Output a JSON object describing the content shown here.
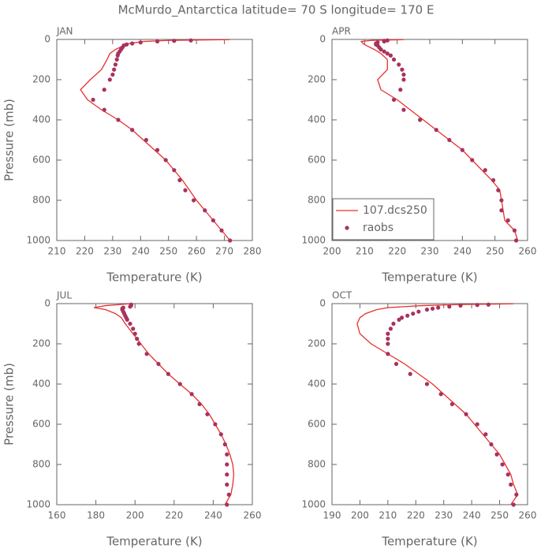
{
  "title": "McMurdo_Antarctica  latitude= 70 S longitude= 170 E",
  "chart_data": [
    {
      "type": "line",
      "title": "JAN",
      "xlabel": "Temperature (K)",
      "ylabel": "Pressure (mb)",
      "xlim": [
        210,
        280
      ],
      "xticks": [
        210,
        220,
        230,
        240,
        250,
        260,
        270,
        280
      ],
      "ylim": [
        0,
        1000
      ],
      "yticks": [
        0,
        200,
        400,
        600,
        800,
        1000
      ],
      "y_inverted": true,
      "series": [
        {
          "color": "#e8302b",
          "style": "line",
          "x": [
            272,
            250,
            241,
            236,
            234,
            231,
            229,
            228,
            226,
            222,
            218.5,
            221,
            226,
            232,
            237,
            241,
            245,
            249,
            252,
            255,
            257.5,
            260,
            263,
            266,
            269,
            272
          ],
          "values": [
            1,
            5,
            10,
            20,
            30,
            50,
            70,
            100,
            150,
            200,
            250,
            300,
            350,
            400,
            450,
            500,
            550,
            600,
            650,
            700,
            750,
            800,
            850,
            900,
            950,
            1000
          ]
        },
        {
          "color": "#a8325f",
          "style": "scatter",
          "x": [
            258,
            252,
            246,
            240,
            237,
            235,
            234,
            233.5,
            233,
            232.5,
            232,
            231.8,
            231.5,
            231,
            230.5,
            230,
            229,
            227,
            223,
            227,
            232,
            237,
            242,
            246,
            249,
            252,
            254,
            256,
            259,
            263,
            266,
            269,
            272
          ],
          "values": [
            5,
            7,
            10,
            15,
            20,
            25,
            30,
            40,
            50,
            60,
            70,
            80,
            100,
            125,
            150,
            175,
            200,
            250,
            300,
            350,
            400,
            450,
            500,
            550,
            600,
            650,
            700,
            750,
            800,
            850,
            900,
            950,
            1000
          ]
        }
      ]
    },
    {
      "type": "line",
      "title": "APR",
      "xlabel": "Temperature (K)",
      "xlim": [
        200,
        260
      ],
      "xticks": [
        200,
        210,
        220,
        230,
        240,
        250,
        260
      ],
      "ylim": [
        0,
        1000
      ],
      "yticks": [
        0,
        200,
        400,
        600,
        800,
        1000
      ],
      "y_inverted": true,
      "legend": "lower left",
      "series": [
        {
          "name": "107.dcs250",
          "color": "#e8302b",
          "style": "line",
          "x": [
            222,
            212,
            209,
            209.5,
            210.5,
            213,
            215,
            217,
            217,
            214,
            215,
            220,
            224,
            228,
            232,
            236,
            240,
            243,
            246,
            249,
            251.5,
            252,
            252.5,
            253,
            256,
            257
          ],
          "values": [
            1,
            5,
            10,
            20,
            30,
            50,
            70,
            100,
            150,
            200,
            250,
            300,
            350,
            400,
            450,
            500,
            550,
            600,
            650,
            700,
            750,
            800,
            850,
            900,
            950,
            1000
          ]
        },
        {
          "name": "raobs",
          "color": "#a8325f",
          "style": "scatter",
          "x": [
            217,
            216,
            216,
            214,
            213.5,
            213.5,
            214,
            214.5,
            215,
            216,
            217,
            218,
            219,
            220.5,
            221.5,
            222,
            222,
            221,
            219,
            222,
            227,
            232,
            236,
            240,
            243,
            247,
            249.5,
            251,
            252,
            252,
            254,
            256,
            256.5
          ],
          "values": [
            5,
            7,
            10,
            15,
            20,
            25,
            30,
            40,
            50,
            60,
            70,
            80,
            100,
            125,
            150,
            175,
            200,
            250,
            300,
            350,
            400,
            450,
            500,
            550,
            600,
            650,
            700,
            750,
            800,
            850,
            900,
            950,
            1000
          ]
        }
      ]
    },
    {
      "type": "line",
      "title": "JUL",
      "xlabel": "Temperature (K)",
      "ylabel": "Pressure (mb)",
      "xlim": [
        160,
        260
      ],
      "xticks": [
        160,
        180,
        200,
        220,
        240,
        260
      ],
      "ylim": [
        0,
        1000
      ],
      "yticks": [
        0,
        200,
        400,
        600,
        800,
        1000
      ],
      "y_inverted": true,
      "series": [
        {
          "color": "#e8302b",
          "style": "line",
          "x": [
            197,
            192,
            185,
            179,
            185,
            190,
            193,
            195,
            199,
            203,
            207,
            212,
            217,
            223,
            229,
            234,
            238,
            241,
            244,
            246.5,
            248.5,
            250,
            250.5,
            250,
            249,
            246
          ],
          "values": [
            1,
            5,
            10,
            20,
            30,
            50,
            70,
            100,
            150,
            200,
            250,
            300,
            350,
            400,
            450,
            500,
            550,
            600,
            650,
            700,
            750,
            800,
            850,
            900,
            950,
            1000
          ]
        },
        {
          "color": "#a8325f",
          "style": "scatter",
          "x": [
            198,
            198,
            198,
            197.5,
            194,
            193.5,
            193.5,
            194,
            194.5,
            195,
            195.5,
            196,
            197.5,
            199,
            200,
            201,
            202,
            206,
            212,
            217,
            223,
            229,
            233,
            237,
            241,
            244,
            246,
            247,
            247,
            247,
            247,
            248,
            247
          ],
          "values": [
            5,
            7,
            10,
            15,
            20,
            25,
            30,
            40,
            50,
            60,
            70,
            80,
            100,
            125,
            150,
            175,
            200,
            250,
            300,
            350,
            400,
            450,
            500,
            550,
            600,
            650,
            700,
            750,
            800,
            850,
            900,
            950,
            1000
          ]
        }
      ]
    },
    {
      "type": "line",
      "title": "OCT",
      "xlabel": "Temperature (K)",
      "xlim": [
        190,
        260
      ],
      "xticks": [
        190,
        200,
        210,
        220,
        230,
        240,
        250,
        260
      ],
      "ylim": [
        0,
        1000
      ],
      "yticks": [
        0,
        200,
        400,
        600,
        800,
        1000
      ],
      "y_inverted": true,
      "series": [
        {
          "color": "#e8302b",
          "style": "line",
          "x": [
            255,
            235,
            222,
            210,
            206,
            202,
            200,
            199,
            200,
            204,
            210,
            216,
            221,
            226,
            230,
            234,
            238,
            241,
            244,
            247,
            250,
            252,
            254,
            255,
            256.5,
            254
          ],
          "values": [
            1,
            5,
            10,
            20,
            30,
            50,
            70,
            100,
            150,
            200,
            250,
            300,
            350,
            400,
            450,
            500,
            550,
            600,
            650,
            700,
            750,
            800,
            850,
            900,
            950,
            1000
          ]
        },
        {
          "color": "#a8325f",
          "style": "scatter",
          "x": [
            246,
            242,
            236,
            232,
            228,
            226,
            224,
            221,
            219,
            217,
            215,
            214,
            212,
            211,
            210,
            210,
            210,
            210,
            213,
            218,
            224,
            229,
            233,
            238,
            242,
            245,
            247,
            249,
            251,
            253,
            254,
            256,
            255
          ],
          "values": [
            5,
            7,
            10,
            15,
            20,
            25,
            30,
            40,
            50,
            60,
            70,
            80,
            100,
            125,
            150,
            175,
            200,
            250,
            300,
            350,
            400,
            450,
            500,
            550,
            600,
            650,
            700,
            750,
            800,
            850,
            900,
            950,
            1000
          ]
        }
      ]
    }
  ]
}
